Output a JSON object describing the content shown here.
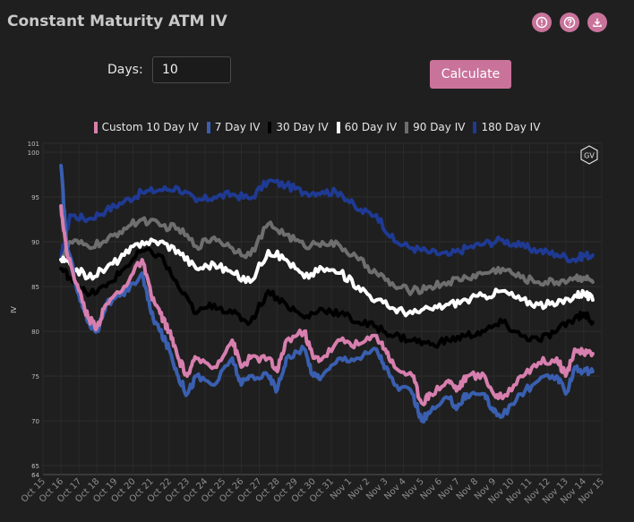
{
  "header": {
    "title": "Constant Maturity ATM IV",
    "icons": [
      {
        "name": "alert-icon",
        "color": "#c9739b"
      },
      {
        "name": "help-icon",
        "color": "#c9739b"
      },
      {
        "name": "download-icon",
        "color": "#c9739b"
      }
    ]
  },
  "controls": {
    "days_label": "Days:",
    "days_value": "10",
    "calculate_label": "Calculate"
  },
  "watermark": "GV",
  "chart_data": {
    "type": "line",
    "ylabel": "IV",
    "xlabel": "",
    "ylim": [
      64,
      101
    ],
    "yticks": [
      64,
      65,
      70,
      75,
      80,
      85,
      90,
      95,
      100,
      101
    ],
    "x_labels": [
      "Oct 15",
      "Oct 16",
      "Oct 17",
      "Oct 18",
      "Oct 19",
      "Oct 20",
      "Oct 21",
      "Oct 22",
      "Oct 23",
      "Oct 24",
      "Oct 25",
      "Oct 26",
      "Oct 27",
      "Oct 28",
      "Oct 29",
      "Oct 30",
      "Oct 31",
      "Nov 1",
      "Nov 2",
      "Nov 3",
      "Nov 4",
      "Nov 5",
      "Nov 6",
      "Nov 7",
      "Nov 8",
      "Nov 9",
      "Nov 10",
      "Nov 11",
      "Nov 12",
      "Nov 13",
      "Nov 14",
      "Nov 15"
    ],
    "x_range": [
      0,
      31
    ],
    "grid": true,
    "legend_position": "top-center",
    "series": [
      {
        "name": "180 Day IV",
        "color": "#1f3a93",
        "points": [
          [
            1.0,
            88
          ],
          [
            1.5,
            93
          ],
          [
            2.5,
            92.5
          ],
          [
            3.5,
            93.5
          ],
          [
            4.5,
            94.5
          ],
          [
            5.5,
            95.5
          ],
          [
            6.5,
            95.8
          ],
          [
            7.5,
            96
          ],
          [
            8.5,
            94.5
          ],
          [
            9.5,
            95
          ],
          [
            10.5,
            95.3
          ],
          [
            11.5,
            94.8
          ],
          [
            12.5,
            96.8
          ],
          [
            13.5,
            96.3
          ],
          [
            14.5,
            95.5
          ],
          [
            15.5,
            95.6
          ],
          [
            16.5,
            95.5
          ],
          [
            17.5,
            93.5
          ],
          [
            18.5,
            93
          ],
          [
            19.5,
            90
          ],
          [
            20.5,
            89.3
          ],
          [
            21.5,
            88.8
          ],
          [
            22.5,
            88.5
          ],
          [
            23.5,
            89.3
          ],
          [
            24.5,
            89.8
          ],
          [
            25.5,
            90.2
          ],
          [
            26.5,
            89.5
          ],
          [
            27.5,
            89
          ],
          [
            28.5,
            88.6
          ],
          [
            29.5,
            88
          ],
          [
            30.0,
            88.5
          ],
          [
            30.5,
            88.5
          ]
        ]
      },
      {
        "name": "90 Day IV",
        "color": "#6e6e6e",
        "points": [
          [
            1.0,
            88
          ],
          [
            1.5,
            90
          ],
          [
            2.5,
            89.5
          ],
          [
            3.5,
            90
          ],
          [
            4.5,
            91.5
          ],
          [
            5.5,
            92.5
          ],
          [
            6.5,
            91.8
          ],
          [
            7.5,
            91.5
          ],
          [
            8.5,
            89.5
          ],
          [
            9.5,
            90.5
          ],
          [
            10.5,
            89.3
          ],
          [
            11.5,
            88.5
          ],
          [
            12.5,
            92
          ],
          [
            13.5,
            90.8
          ],
          [
            14.5,
            89.5
          ],
          [
            15.5,
            90
          ],
          [
            16.5,
            89.5
          ],
          [
            17.5,
            88
          ],
          [
            18.5,
            86.5
          ],
          [
            19.5,
            85
          ],
          [
            20.5,
            84.5
          ],
          [
            21.5,
            85
          ],
          [
            22.5,
            85.5
          ],
          [
            23.5,
            86
          ],
          [
            24.5,
            86.5
          ],
          [
            25.5,
            87
          ],
          [
            26.5,
            86
          ],
          [
            27.5,
            85.5
          ],
          [
            28.5,
            85.5
          ],
          [
            29.5,
            86
          ],
          [
            30.0,
            86
          ],
          [
            30.5,
            85.5
          ]
        ]
      },
      {
        "name": "60 Day IV",
        "color": "#ffffff",
        "points": [
          [
            1.0,
            88
          ],
          [
            1.5,
            87.5
          ],
          [
            2.5,
            86
          ],
          [
            3.5,
            87
          ],
          [
            4.5,
            88.5
          ],
          [
            5.5,
            90
          ],
          [
            6.5,
            90
          ],
          [
            7.5,
            89
          ],
          [
            8.5,
            87
          ],
          [
            9.5,
            87.5
          ],
          [
            10.5,
            86.5
          ],
          [
            11.5,
            85.5
          ],
          [
            12.5,
            89
          ],
          [
            13.5,
            88
          ],
          [
            14.5,
            86
          ],
          [
            15.5,
            87
          ],
          [
            16.5,
            86.5
          ],
          [
            17.5,
            85
          ],
          [
            18.5,
            83.5
          ],
          [
            19.5,
            82.5
          ],
          [
            20.5,
            82
          ],
          [
            21.5,
            82.5
          ],
          [
            22.5,
            83
          ],
          [
            23.5,
            83.5
          ],
          [
            24.5,
            84
          ],
          [
            25.5,
            84.5
          ],
          [
            26.5,
            83.5
          ],
          [
            27.5,
            83
          ],
          [
            28.5,
            83
          ],
          [
            29.5,
            84
          ],
          [
            30.0,
            84.3
          ],
          [
            30.5,
            83.5
          ]
        ]
      },
      {
        "name": "30 Day IV",
        "color": "#000000",
        "points": [
          [
            1.0,
            87
          ],
          [
            1.5,
            86
          ],
          [
            2.5,
            84
          ],
          [
            3.5,
            85
          ],
          [
            4.5,
            87
          ],
          [
            5.5,
            89
          ],
          [
            6.5,
            88.5
          ],
          [
            7.5,
            85
          ],
          [
            8.5,
            82
          ],
          [
            9.5,
            83
          ],
          [
            10.5,
            82
          ],
          [
            11.5,
            81
          ],
          [
            12.5,
            84.5
          ],
          [
            13.5,
            83
          ],
          [
            14.5,
            81.5
          ],
          [
            15.5,
            82.5
          ],
          [
            16.5,
            82
          ],
          [
            17.5,
            81
          ],
          [
            18.5,
            80.5
          ],
          [
            19.5,
            79.5
          ],
          [
            20.5,
            79
          ],
          [
            21.5,
            78.5
          ],
          [
            22.5,
            79
          ],
          [
            23.5,
            79.5
          ],
          [
            24.5,
            80
          ],
          [
            25.5,
            81
          ],
          [
            26.5,
            79.5
          ],
          [
            27.5,
            79
          ],
          [
            28.5,
            80
          ],
          [
            29.5,
            81.5
          ],
          [
            30.0,
            82
          ],
          [
            30.5,
            81
          ]
        ]
      },
      {
        "name": "7 Day IV",
        "color": "#3a5fb0",
        "points": [
          [
            1.0,
            98.5
          ],
          [
            1.3,
            90
          ],
          [
            2.0,
            84
          ],
          [
            2.5,
            81
          ],
          [
            3.0,
            80
          ],
          [
            3.5,
            83
          ],
          [
            4.5,
            84
          ],
          [
            5.5,
            86.5
          ],
          [
            6.0,
            82
          ],
          [
            6.5,
            80
          ],
          [
            7.0,
            78
          ],
          [
            7.5,
            75
          ],
          [
            8.0,
            73
          ],
          [
            8.5,
            75
          ],
          [
            9.5,
            74
          ],
          [
            10.5,
            77
          ],
          [
            11.0,
            74
          ],
          [
            11.5,
            75
          ],
          [
            12.5,
            75
          ],
          [
            13.0,
            73.5
          ],
          [
            13.5,
            77
          ],
          [
            14.5,
            78
          ],
          [
            15.0,
            75
          ],
          [
            15.5,
            75
          ],
          [
            16.5,
            77
          ],
          [
            17.5,
            77
          ],
          [
            18.5,
            78
          ],
          [
            19.0,
            76
          ],
          [
            19.5,
            74
          ],
          [
            20.5,
            73
          ],
          [
            21.0,
            70
          ],
          [
            21.5,
            71
          ],
          [
            22.5,
            72.5
          ],
          [
            23.0,
            71.5
          ],
          [
            23.5,
            73
          ],
          [
            24.5,
            73
          ],
          [
            25.0,
            71
          ],
          [
            25.5,
            70.5
          ],
          [
            26.5,
            73
          ],
          [
            27.5,
            74.5
          ],
          [
            28.5,
            75
          ],
          [
            29.0,
            73
          ],
          [
            29.5,
            76
          ],
          [
            30.0,
            75.5
          ],
          [
            30.5,
            75.5
          ]
        ]
      },
      {
        "name": "Custom 10 Day IV",
        "color": "#d77fae",
        "points": [
          [
            1.0,
            94
          ],
          [
            1.3,
            89
          ],
          [
            2.0,
            84.5
          ],
          [
            2.5,
            81.5
          ],
          [
            3.0,
            80.5
          ],
          [
            3.5,
            83
          ],
          [
            4.5,
            85
          ],
          [
            5.5,
            88
          ],
          [
            6.0,
            84
          ],
          [
            6.5,
            82
          ],
          [
            7.0,
            80
          ],
          [
            7.5,
            77
          ],
          [
            8.0,
            75
          ],
          [
            8.5,
            77
          ],
          [
            9.5,
            76
          ],
          [
            10.5,
            79
          ],
          [
            11.0,
            76
          ],
          [
            11.5,
            77
          ],
          [
            12.5,
            77
          ],
          [
            13.0,
            75.5
          ],
          [
            13.5,
            79
          ],
          [
            14.5,
            80
          ],
          [
            15.0,
            77
          ],
          [
            15.5,
            77
          ],
          [
            16.5,
            79
          ],
          [
            17.5,
            78.5
          ],
          [
            18.5,
            79.5
          ],
          [
            19.0,
            78
          ],
          [
            19.5,
            76
          ],
          [
            20.5,
            75
          ],
          [
            21.0,
            72
          ],
          [
            21.5,
            73
          ],
          [
            22.5,
            74.5
          ],
          [
            23.0,
            73.5
          ],
          [
            23.5,
            75
          ],
          [
            24.5,
            75
          ],
          [
            25.0,
            73
          ],
          [
            25.5,
            72.5
          ],
          [
            26.5,
            75
          ],
          [
            27.5,
            76.5
          ],
          [
            28.5,
            77
          ],
          [
            29.0,
            75
          ],
          [
            29.5,
            78
          ],
          [
            30.0,
            77.5
          ],
          [
            30.5,
            77.5
          ]
        ]
      }
    ]
  }
}
